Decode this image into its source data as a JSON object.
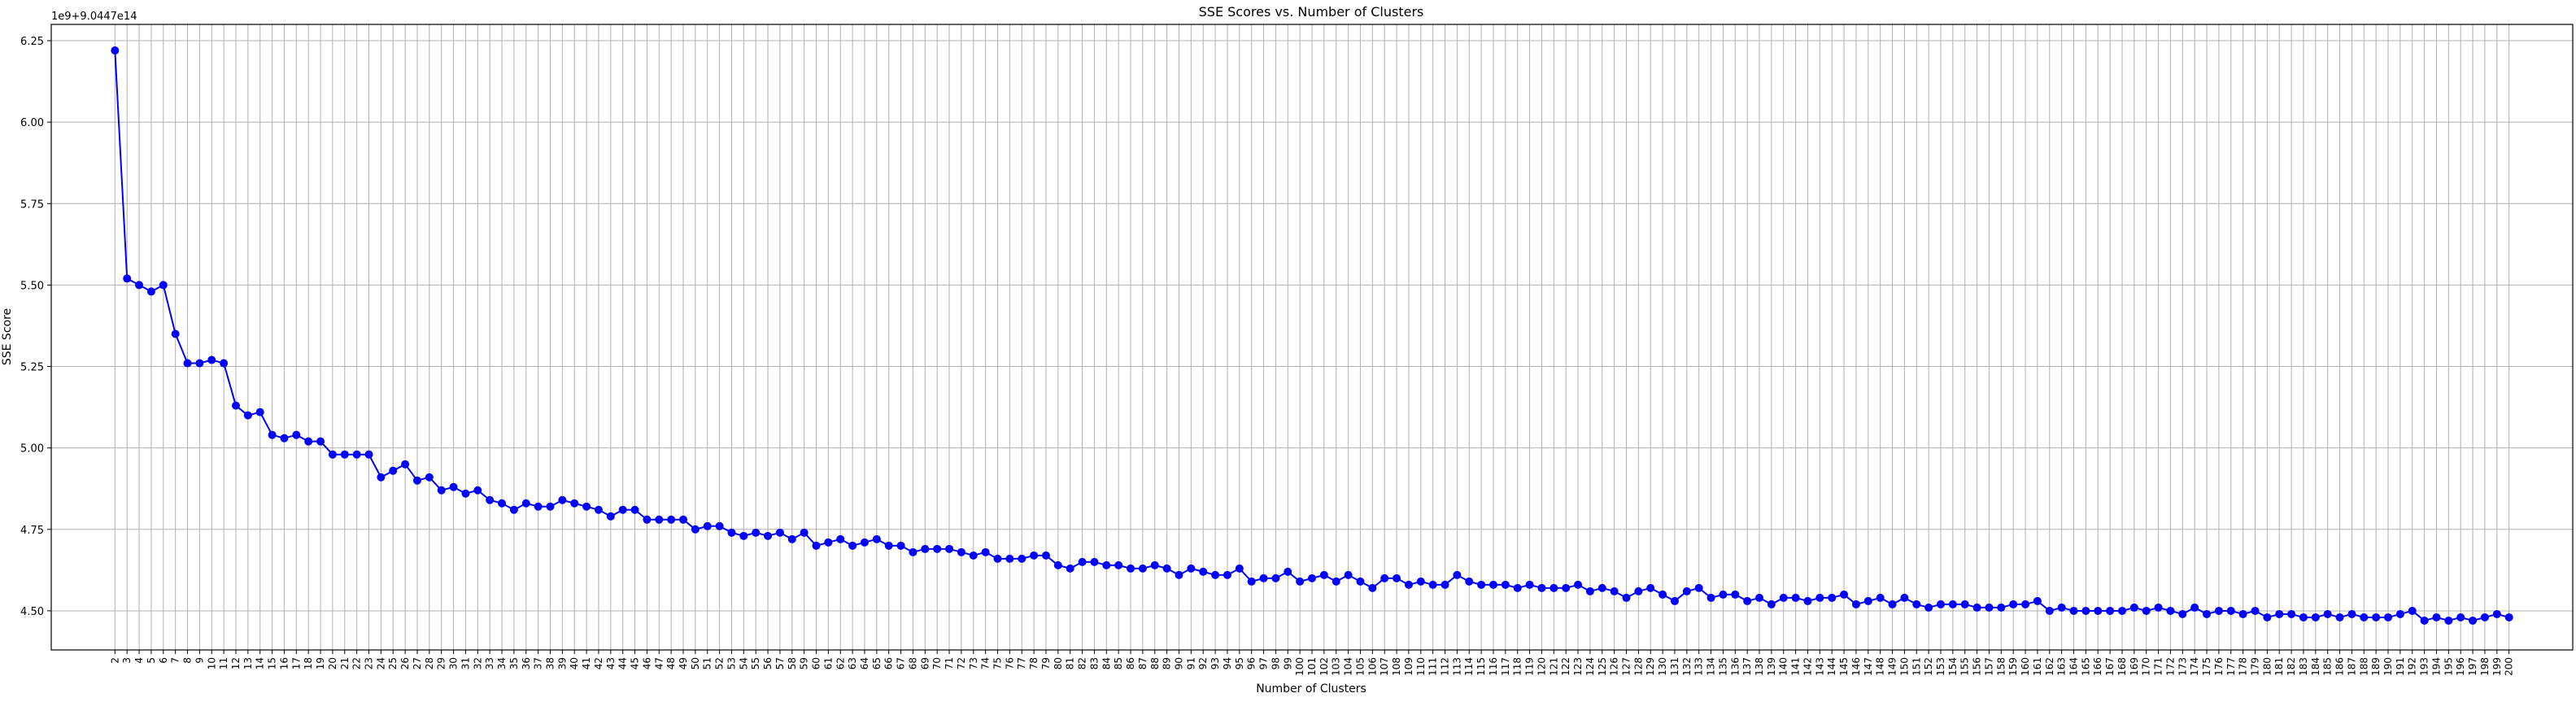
{
  "chart_data": {
    "type": "line",
    "title": "SSE Scores vs. Number of Clusters",
    "xlabel": "Number of Clusters",
    "ylabel": "SSE Score",
    "offset_label": "1e9+9.0447e14",
    "grid": true,
    "legend": "none",
    "ylim": [
      4.38,
      6.3
    ],
    "yticks": [
      4.5,
      4.75,
      5.0,
      5.25,
      5.5,
      5.75,
      6.0,
      6.25
    ],
    "ytick_labels": [
      "4.50",
      "4.75",
      "5.00",
      "5.25",
      "5.50",
      "5.75",
      "6.00",
      "6.25"
    ],
    "marker": "circle",
    "line_color": "#0000ff",
    "x": [
      2,
      3,
      4,
      5,
      6,
      7,
      8,
      9,
      10,
      11,
      12,
      13,
      14,
      15,
      16,
      17,
      18,
      19,
      20,
      21,
      22,
      23,
      24,
      25,
      26,
      27,
      28,
      29,
      30,
      31,
      32,
      33,
      34,
      35,
      36,
      37,
      38,
      39,
      40,
      41,
      42,
      43,
      44,
      45,
      46,
      47,
      48,
      49,
      50,
      51,
      52,
      53,
      54,
      55,
      56,
      57,
      58,
      59,
      60,
      61,
      62,
      63,
      64,
      65,
      66,
      67,
      68,
      69,
      70,
      71,
      72,
      73,
      74,
      75,
      76,
      77,
      78,
      79,
      80,
      81,
      82,
      83,
      84,
      85,
      86,
      87,
      88,
      89,
      90,
      91,
      92,
      93,
      94,
      95,
      96,
      97,
      98,
      99,
      100,
      101,
      102,
      103,
      104,
      105,
      106,
      107,
      108,
      109,
      110,
      111,
      112,
      113,
      114,
      115,
      116,
      117,
      118,
      119,
      120,
      121,
      122,
      123,
      124,
      125,
      126,
      127,
      128,
      129,
      130,
      131,
      132,
      133,
      134,
      135,
      136,
      137,
      138,
      139,
      140,
      141,
      142,
      143,
      144,
      145,
      146,
      147,
      148,
      149,
      150,
      151,
      152,
      153,
      154,
      155,
      156,
      157,
      158,
      159,
      160,
      161,
      162,
      163,
      164,
      165,
      166,
      167,
      168,
      169,
      170,
      171,
      172,
      173,
      174,
      175,
      176,
      177,
      178,
      179,
      180,
      181,
      182,
      183,
      184,
      185,
      186,
      187,
      188,
      189,
      190,
      191,
      192,
      193,
      194,
      195,
      196,
      197,
      198,
      199,
      200
    ],
    "y": [
      6.22,
      5.52,
      5.5,
      5.48,
      5.5,
      5.35,
      5.26,
      5.26,
      5.27,
      5.26,
      5.13,
      5.1,
      5.11,
      5.04,
      5.03,
      5.04,
      5.02,
      5.02,
      4.98,
      4.98,
      4.98,
      4.98,
      4.91,
      4.93,
      4.95,
      4.9,
      4.91,
      4.87,
      4.88,
      4.86,
      4.87,
      4.84,
      4.83,
      4.81,
      4.83,
      4.82,
      4.82,
      4.84,
      4.83,
      4.82,
      4.81,
      4.79,
      4.81,
      4.81,
      4.78,
      4.78,
      4.78,
      4.78,
      4.75,
      4.76,
      4.76,
      4.74,
      4.73,
      4.74,
      4.73,
      4.74,
      4.72,
      4.74,
      4.7,
      4.71,
      4.72,
      4.7,
      4.71,
      4.72,
      4.7,
      4.7,
      4.68,
      4.69,
      4.69,
      4.69,
      4.68,
      4.67,
      4.68,
      4.66,
      4.66,
      4.66,
      4.67,
      4.67,
      4.64,
      4.63,
      4.65,
      4.65,
      4.64,
      4.64,
      4.63,
      4.63,
      4.64,
      4.63,
      4.61,
      4.63,
      4.62,
      4.61,
      4.61,
      4.63,
      4.59,
      4.6,
      4.6,
      4.62,
      4.59,
      4.6,
      4.61,
      4.59,
      4.61,
      4.59,
      4.57,
      4.6,
      4.6,
      4.58,
      4.59,
      4.58,
      4.58,
      4.61,
      4.59,
      4.58,
      4.58,
      4.58,
      4.57,
      4.58,
      4.57,
      4.57,
      4.57,
      4.58,
      4.56,
      4.57,
      4.56,
      4.54,
      4.56,
      4.57,
      4.55,
      4.53,
      4.56,
      4.57,
      4.54,
      4.55,
      4.55,
      4.53,
      4.54,
      4.52,
      4.54,
      4.54,
      4.53,
      4.54,
      4.54,
      4.55,
      4.52,
      4.53,
      4.54,
      4.52,
      4.54,
      4.52,
      4.51,
      4.52,
      4.52,
      4.52,
      4.51,
      4.51,
      4.51,
      4.52,
      4.52,
      4.53,
      4.5,
      4.51,
      4.5,
      4.5,
      4.5,
      4.5,
      4.5,
      4.51,
      4.5,
      4.51,
      4.5,
      4.49,
      4.51,
      4.49,
      4.5,
      4.5,
      4.49,
      4.5,
      4.48,
      4.49,
      4.49,
      4.48,
      4.48,
      4.49,
      4.48,
      4.49,
      4.48,
      4.48,
      4.48,
      4.49,
      4.5,
      4.47,
      4.48,
      4.47,
      4.48,
      4.47,
      4.48,
      4.49,
      4.48
    ]
  }
}
